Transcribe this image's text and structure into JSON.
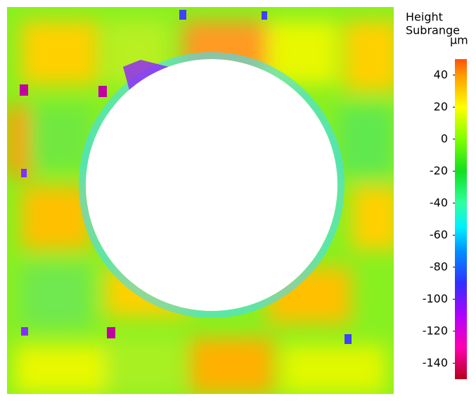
{
  "chart_data": {
    "type": "heatmap",
    "colorbar_title": [
      "Height",
      "Subrange"
    ],
    "colorbar_unit": "µm",
    "clim": [
      -150,
      50
    ],
    "cticks": [
      40,
      20,
      0,
      -20,
      -40,
      -60,
      -80,
      -100,
      -120,
      -140
    ],
    "colorscale": [
      [
        -150,
        "#b8001a"
      ],
      [
        -130,
        "#ff00b0"
      ],
      [
        -110,
        "#b000ff"
      ],
      [
        -90,
        "#3030ff"
      ],
      [
        -70,
        "#0090ff"
      ],
      [
        -55,
        "#00f0ff"
      ],
      [
        -40,
        "#30ffa0"
      ],
      [
        -20,
        "#10e020"
      ],
      [
        0,
        "#80ff00"
      ],
      [
        20,
        "#ffff00"
      ],
      [
        40,
        "#ff9a00"
      ],
      [
        50,
        "#ff5010"
      ]
    ]
  }
}
